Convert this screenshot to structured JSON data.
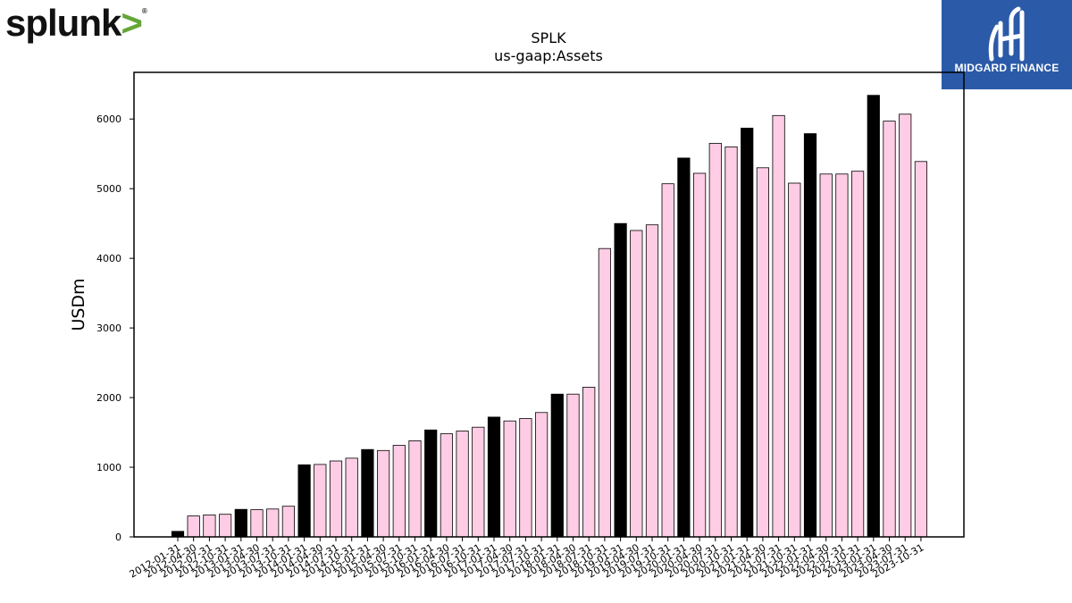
{
  "logos": {
    "left_brand": "splunk",
    "left_brand_mark": ">",
    "right_brand": "MIDGARD FINANCE"
  },
  "colors": {
    "fiscal_year_end_bar": "#000000",
    "quarter_bar": "#ffcce5",
    "bar_edge": "#000000",
    "splunk_chevron": "#65a637",
    "midgard_bg": "#2b5aa8"
  },
  "chart_data": {
    "type": "bar",
    "title": "SPLK",
    "subtitle": "us-gaap:Assets",
    "ylabel": "USDm",
    "xlabel": "",
    "ylim": [
      0,
      6670
    ],
    "yticks": [
      0,
      1000,
      2000,
      3000,
      4000,
      5000,
      6000
    ],
    "grid": false,
    "categories": [
      "2012-01-31",
      "2012-04-30",
      "2012-07-31",
      "2012-10-31",
      "2013-01-31",
      "2013-04-30",
      "2013-07-31",
      "2013-10-31",
      "2014-01-31",
      "2014-04-30",
      "2014-07-31",
      "2014-10-31",
      "2015-01-31",
      "2015-04-30",
      "2015-07-31",
      "2015-10-31",
      "2016-01-31",
      "2016-04-30",
      "2016-07-31",
      "2016-10-31",
      "2017-01-31",
      "2017-04-30",
      "2017-07-31",
      "2017-10-31",
      "2018-01-31",
      "2018-04-30",
      "2018-07-31",
      "2018-10-31",
      "2019-01-31",
      "2019-04-30",
      "2019-07-31",
      "2019-10-31",
      "2020-01-31",
      "2020-04-30",
      "2020-07-31",
      "2020-10-31",
      "2021-01-31",
      "2021-04-30",
      "2021-07-31",
      "2021-10-31",
      "2022-01-31",
      "2022-04-30",
      "2022-07-31",
      "2022-10-31",
      "2023-01-31",
      "2023-04-30",
      "2023-07-31",
      "2023-10-31"
    ],
    "values": [
      80,
      300,
      315,
      325,
      395,
      390,
      400,
      440,
      1035,
      1040,
      1090,
      1130,
      1255,
      1240,
      1315,
      1380,
      1535,
      1480,
      1520,
      1575,
      1720,
      1665,
      1700,
      1785,
      2050,
      2050,
      2150,
      4140,
      4500,
      4400,
      4480,
      5070,
      5440,
      5220,
      5650,
      5600,
      5870,
      5300,
      6050,
      5080,
      5790,
      5210,
      5210,
      5250,
      6340,
      5970,
      6070,
      5390
    ],
    "fiscal_year_end_flags": [
      1,
      0,
      0,
      0,
      1,
      0,
      0,
      0,
      1,
      0,
      0,
      0,
      1,
      0,
      0,
      0,
      1,
      0,
      0,
      0,
      1,
      0,
      0,
      0,
      1,
      0,
      0,
      0,
      1,
      0,
      0,
      0,
      1,
      0,
      0,
      0,
      1,
      0,
      0,
      0,
      1,
      0,
      0,
      0,
      1,
      0,
      0,
      0
    ]
  }
}
